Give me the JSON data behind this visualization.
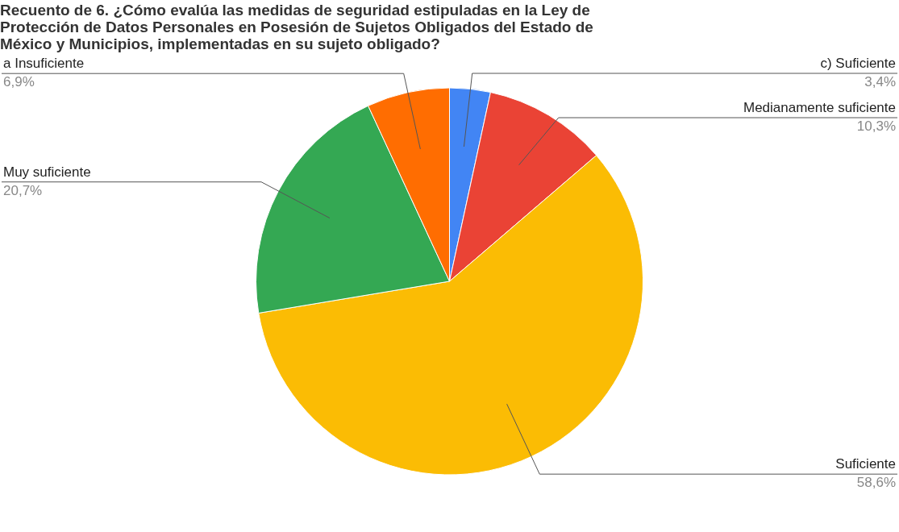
{
  "chart_data": {
    "type": "pie",
    "title": "Recuento de 6.  ¿Cómo evalúa las medidas de seguridad estipuladas en  la Ley de Protección de Datos Personales en Posesión de Sujetos Obligados del Estado de México y Municipios, implementadas en su sujeto obligado?",
    "categories": [
      "c) Suficiente",
      "Medianamente suficiente",
      "Suficiente",
      "Muy suficiente",
      "a Insuficiente"
    ],
    "values": [
      3.4,
      10.3,
      58.6,
      20.7,
      6.9
    ],
    "colors": [
      "#4285f4",
      "#ea4335",
      "#fbbc04",
      "#34a853",
      "#ff6d01"
    ],
    "value_labels": [
      "3,4%",
      "10,3%",
      "58,6%",
      "20,7%",
      "6,9%"
    ]
  }
}
